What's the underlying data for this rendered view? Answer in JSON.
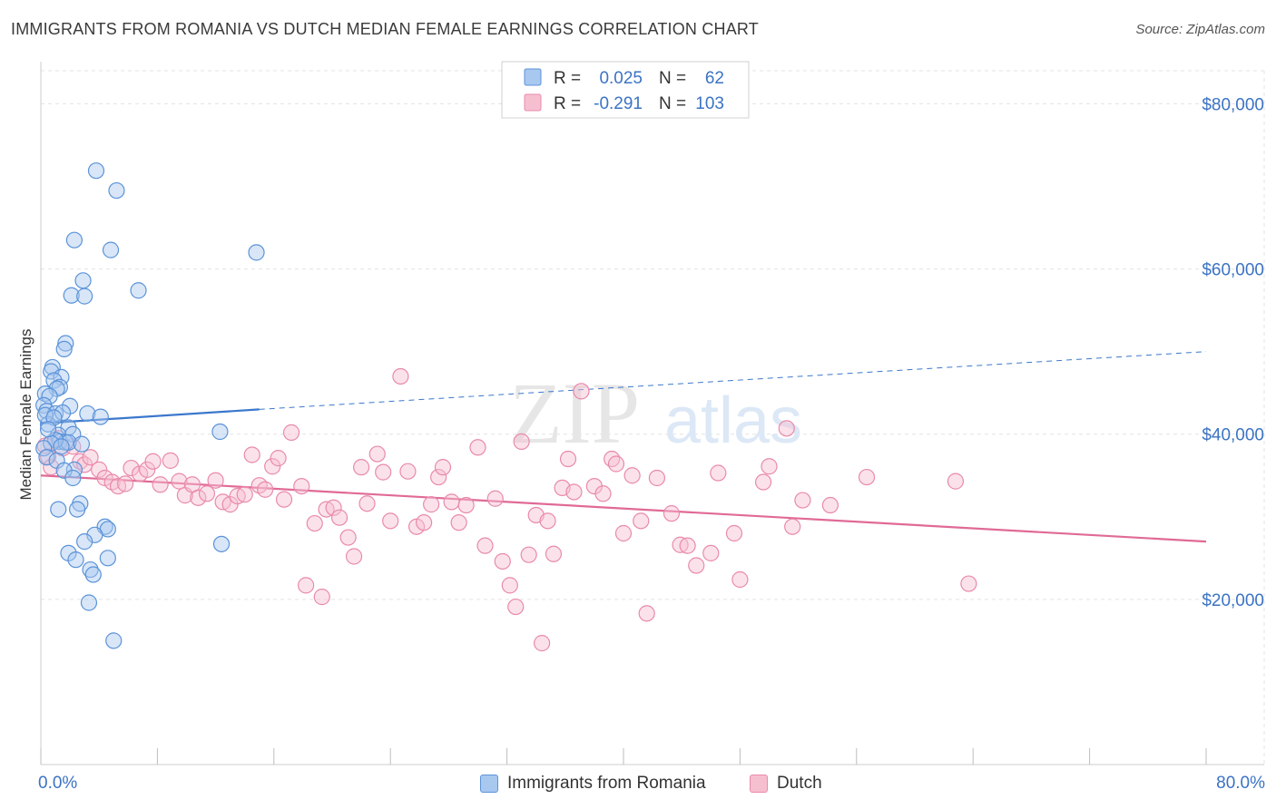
{
  "header": {
    "title": "IMMIGRANTS FROM ROMANIA VS DUTCH MEDIAN FEMALE EARNINGS CORRELATION CHART",
    "source": "Source: ZipAtlas.com"
  },
  "watermark": {
    "zip": "ZIP",
    "atlas": "atlas"
  },
  "colors": {
    "blue_fill": "#a8c8f0",
    "blue_stroke": "#5b93d8",
    "blue_line": "#3b78cc",
    "pink_fill": "#f6bfd0",
    "pink_stroke": "#e98aab",
    "pink_line": "#e06a96",
    "axis_text": "#3b73c4",
    "grid": "#e3e3e3"
  },
  "legend_top": {
    "rows": [
      {
        "r_label": "R =",
        "r_value": "0.025",
        "n_label": "N =",
        "n_value": "62"
      },
      {
        "r_label": "R =",
        "r_value": "-0.291",
        "n_label": "N =",
        "n_value": "103"
      }
    ]
  },
  "legend_bottom": {
    "items": [
      {
        "label": "Immigrants from Romania"
      },
      {
        "label": "Dutch"
      }
    ]
  },
  "chart_data": {
    "type": "scatter",
    "title": "IMMIGRANTS FROM ROMANIA VS DUTCH MEDIAN FEMALE EARNINGS CORRELATION CHART",
    "xlabel": "",
    "ylabel": "Median Female Earnings",
    "xlim": [
      0,
      80
    ],
    "ylim": [
      0,
      84000
    ],
    "x_tick_labels": [
      "0.0%",
      "80.0%"
    ],
    "y_ticks": [
      20000,
      40000,
      60000,
      80000
    ],
    "y_tick_labels": [
      "$20,000",
      "$40,000",
      "$60,000",
      "$80,000"
    ],
    "grid": true,
    "legend_position": "top-center",
    "series": [
      {
        "name": "Immigrants from Romania",
        "r": 0.025,
        "n": 62,
        "trend": {
          "x": [
            0,
            15
          ],
          "y": [
            41300,
            43000
          ]
        },
        "trend_extension": {
          "x": [
            15,
            80
          ],
          "y": [
            43000,
            50000
          ]
        },
        "points": [
          [
            3.8,
            71900
          ],
          [
            5.2,
            69500
          ],
          [
            2.3,
            63500
          ],
          [
            4.8,
            62300
          ],
          [
            14.8,
            62000
          ],
          [
            2.9,
            58600
          ],
          [
            6.7,
            57400
          ],
          [
            2.1,
            56800
          ],
          [
            3.0,
            56700
          ],
          [
            1.7,
            51000
          ],
          [
            1.6,
            50300
          ],
          [
            0.8,
            48100
          ],
          [
            0.7,
            47600
          ],
          [
            1.4,
            46900
          ],
          [
            0.9,
            46500
          ],
          [
            1.3,
            45700
          ],
          [
            1.1,
            45500
          ],
          [
            0.3,
            44900
          ],
          [
            0.6,
            44600
          ],
          [
            0.2,
            43500
          ],
          [
            2.0,
            43400
          ],
          [
            0.4,
            42800
          ],
          [
            1.0,
            42500
          ],
          [
            1.5,
            42600
          ],
          [
            3.2,
            42500
          ],
          [
            4.1,
            42100
          ],
          [
            1.9,
            40800
          ],
          [
            0.5,
            41200
          ],
          [
            12.3,
            40300
          ],
          [
            1.2,
            39900
          ],
          [
            2.2,
            40000
          ],
          [
            1.3,
            39100
          ],
          [
            1.7,
            39000
          ],
          [
            1.9,
            39000
          ],
          [
            2.8,
            38800
          ],
          [
            1.0,
            39300
          ],
          [
            0.7,
            38900
          ],
          [
            0.2,
            38300
          ],
          [
            0.4,
            37200
          ],
          [
            1.1,
            36800
          ],
          [
            2.3,
            35700
          ],
          [
            1.6,
            35600
          ],
          [
            2.2,
            34700
          ],
          [
            2.7,
            31600
          ],
          [
            1.2,
            30900
          ],
          [
            2.5,
            30900
          ],
          [
            4.4,
            28800
          ],
          [
            4.6,
            28500
          ],
          [
            3.7,
            27800
          ],
          [
            3.0,
            27000
          ],
          [
            12.4,
            26700
          ],
          [
            1.9,
            25600
          ],
          [
            4.6,
            25000
          ],
          [
            2.4,
            24800
          ],
          [
            3.4,
            23600
          ],
          [
            3.6,
            23000
          ],
          [
            3.3,
            19600
          ],
          [
            5.0,
            15000
          ],
          [
            0.3,
            42300
          ],
          [
            0.9,
            42000
          ],
          [
            1.4,
            38500
          ],
          [
            0.5,
            40600
          ]
        ]
      },
      {
        "name": "Dutch",
        "r": -0.291,
        "n": 103,
        "trend": {
          "x": [
            0,
            80
          ],
          "y": [
            35000,
            27000
          ]
        },
        "points": [
          [
            0.3,
            38600
          ],
          [
            0.5,
            37300
          ],
          [
            0.7,
            36000
          ],
          [
            1.2,
            39500
          ],
          [
            1.5,
            38300
          ],
          [
            2.2,
            38500
          ],
          [
            2.7,
            36700
          ],
          [
            3.0,
            36300
          ],
          [
            3.4,
            37200
          ],
          [
            4.0,
            35700
          ],
          [
            4.4,
            34700
          ],
          [
            4.9,
            34200
          ],
          [
            5.3,
            33700
          ],
          [
            5.8,
            34000
          ],
          [
            6.2,
            35900
          ],
          [
            6.8,
            35200
          ],
          [
            7.3,
            35700
          ],
          [
            7.7,
            36700
          ],
          [
            8.2,
            33900
          ],
          [
            8.9,
            36800
          ],
          [
            9.5,
            34300
          ],
          [
            9.9,
            32600
          ],
          [
            10.4,
            33900
          ],
          [
            10.8,
            32300
          ],
          [
            11.4,
            32800
          ],
          [
            12.0,
            34400
          ],
          [
            12.5,
            31800
          ],
          [
            13.0,
            31500
          ],
          [
            13.5,
            32500
          ],
          [
            14.0,
            32700
          ],
          [
            14.5,
            37500
          ],
          [
            15.0,
            33800
          ],
          [
            15.4,
            33300
          ],
          [
            15.9,
            36100
          ],
          [
            16.3,
            37100
          ],
          [
            16.7,
            32100
          ],
          [
            17.2,
            40200
          ],
          [
            17.9,
            33700
          ],
          [
            18.2,
            21700
          ],
          [
            18.8,
            29200
          ],
          [
            19.3,
            20300
          ],
          [
            19.6,
            30900
          ],
          [
            20.1,
            31100
          ],
          [
            20.5,
            29900
          ],
          [
            21.1,
            27500
          ],
          [
            21.5,
            25200
          ],
          [
            22.0,
            36000
          ],
          [
            22.4,
            31600
          ],
          [
            23.1,
            37600
          ],
          [
            23.5,
            35400
          ],
          [
            24.0,
            29500
          ],
          [
            24.7,
            47000
          ],
          [
            25.2,
            35500
          ],
          [
            25.8,
            28800
          ],
          [
            26.3,
            29300
          ],
          [
            26.8,
            31500
          ],
          [
            27.3,
            34800
          ],
          [
            27.6,
            36000
          ],
          [
            28.2,
            31800
          ],
          [
            28.7,
            29300
          ],
          [
            29.2,
            31400
          ],
          [
            30.0,
            38400
          ],
          [
            30.5,
            26500
          ],
          [
            31.2,
            32200
          ],
          [
            31.7,
            24600
          ],
          [
            32.2,
            21700
          ],
          [
            32.6,
            19100
          ],
          [
            33.0,
            39100
          ],
          [
            33.5,
            25400
          ],
          [
            34.0,
            30200
          ],
          [
            34.4,
            14700
          ],
          [
            34.8,
            29500
          ],
          [
            35.2,
            25500
          ],
          [
            35.8,
            33500
          ],
          [
            36.2,
            37000
          ],
          [
            36.6,
            33000
          ],
          [
            37.1,
            45200
          ],
          [
            38.0,
            33700
          ],
          [
            38.6,
            32800
          ],
          [
            39.2,
            37000
          ],
          [
            39.5,
            36400
          ],
          [
            40.0,
            28000
          ],
          [
            40.6,
            35000
          ],
          [
            41.2,
            29500
          ],
          [
            41.6,
            18300
          ],
          [
            42.3,
            34700
          ],
          [
            43.3,
            30400
          ],
          [
            43.9,
            26600
          ],
          [
            44.4,
            26500
          ],
          [
            45.0,
            24100
          ],
          [
            46.0,
            25600
          ],
          [
            46.5,
            35300
          ],
          [
            47.6,
            28000
          ],
          [
            48.0,
            22400
          ],
          [
            49.6,
            34200
          ],
          [
            50.0,
            36100
          ],
          [
            51.2,
            40700
          ],
          [
            51.6,
            28800
          ],
          [
            52.3,
            32000
          ],
          [
            54.2,
            31400
          ],
          [
            56.7,
            34800
          ],
          [
            62.8,
            34300
          ],
          [
            63.7,
            21900
          ]
        ]
      }
    ]
  }
}
